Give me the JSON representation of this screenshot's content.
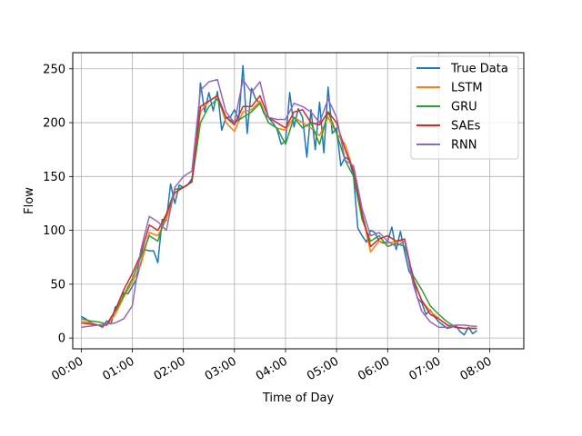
{
  "chart_data": {
    "type": "line",
    "title": "",
    "xlabel": "Time of Day",
    "ylabel": "Flow",
    "x_ticks": [
      "00:00",
      "01:00",
      "02:00",
      "03:00",
      "04:00",
      "05:00",
      "06:00",
      "07:00",
      "08:00"
    ],
    "y_ticks": [
      0,
      50,
      100,
      150,
      200,
      250
    ],
    "xlim_minutes": [
      -10,
      520
    ],
    "ylim": [
      -10,
      265
    ],
    "grid": true,
    "legend_position": "top-right",
    "series": [
      {
        "name": "True Data",
        "color": "#1f77b4",
        "points": [
          [
            0,
            20
          ],
          [
            5,
            18
          ],
          [
            10,
            15
          ],
          [
            15,
            13
          ],
          [
            20,
            12
          ],
          [
            25,
            10
          ],
          [
            30,
            16
          ],
          [
            35,
            13
          ],
          [
            40,
            29
          ],
          [
            45,
            30
          ],
          [
            50,
            42
          ],
          [
            55,
            41
          ],
          [
            60,
            48
          ],
          [
            65,
            55
          ],
          [
            70,
            70
          ],
          [
            75,
            82
          ],
          [
            80,
            81
          ],
          [
            85,
            81
          ],
          [
            90,
            70
          ],
          [
            95,
            110
          ],
          [
            100,
            109
          ],
          [
            105,
            143
          ],
          [
            110,
            125
          ],
          [
            115,
            142
          ],
          [
            120,
            140
          ],
          [
            125,
            142
          ],
          [
            130,
            148
          ],
          [
            135,
            175
          ],
          [
            140,
            237
          ],
          [
            145,
            210
          ],
          [
            150,
            228
          ],
          [
            155,
            211
          ],
          [
            160,
            229
          ],
          [
            165,
            193
          ],
          [
            170,
            205
          ],
          [
            175,
            205
          ],
          [
            180,
            212
          ],
          [
            185,
            203
          ],
          [
            190,
            253
          ],
          [
            195,
            190
          ],
          [
            200,
            232
          ],
          [
            205,
            222
          ],
          [
            210,
            218
          ],
          [
            215,
            208
          ],
          [
            220,
            205
          ],
          [
            225,
            200
          ],
          [
            230,
            194
          ],
          [
            235,
            180
          ],
          [
            240,
            183
          ],
          [
            245,
            228
          ],
          [
            250,
            196
          ],
          [
            255,
            213
          ],
          [
            260,
            205
          ],
          [
            265,
            168
          ],
          [
            270,
            212
          ],
          [
            275,
            175
          ],
          [
            280,
            219
          ],
          [
            285,
            172
          ],
          [
            290,
            233
          ],
          [
            295,
            190
          ],
          [
            300,
            195
          ],
          [
            305,
            160
          ],
          [
            310,
            168
          ],
          [
            315,
            165
          ],
          [
            320,
            150
          ],
          [
            325,
            102
          ],
          [
            330,
            95
          ],
          [
            335,
            89
          ],
          [
            340,
            100
          ],
          [
            345,
            98
          ],
          [
            350,
            90
          ],
          [
            355,
            88
          ],
          [
            360,
            90
          ],
          [
            365,
            103
          ],
          [
            370,
            82
          ],
          [
            375,
            99
          ],
          [
            380,
            80
          ],
          [
            385,
            62
          ],
          [
            390,
            56
          ],
          [
            395,
            37
          ],
          [
            400,
            33
          ],
          [
            405,
            22
          ],
          [
            410,
            26
          ],
          [
            415,
            20
          ],
          [
            420,
            15
          ],
          [
            425,
            12
          ],
          [
            430,
            9
          ],
          [
            435,
            10
          ],
          [
            440,
            12
          ],
          [
            445,
            6
          ],
          [
            450,
            3
          ],
          [
            455,
            10
          ],
          [
            460,
            4
          ],
          [
            465,
            7
          ]
        ]
      },
      {
        "name": "LSTM",
        "color": "#ff7f0e",
        "points": [
          [
            0,
            16
          ],
          [
            10,
            14
          ],
          [
            20,
            12
          ],
          [
            30,
            12
          ],
          [
            40,
            22
          ],
          [
            50,
            38
          ],
          [
            60,
            52
          ],
          [
            70,
            68
          ],
          [
            80,
            98
          ],
          [
            90,
            95
          ],
          [
            100,
            110
          ],
          [
            110,
            135
          ],
          [
            120,
            140
          ],
          [
            130,
            145
          ],
          [
            140,
            210
          ],
          [
            150,
            220
          ],
          [
            160,
            225
          ],
          [
            170,
            200
          ],
          [
            180,
            192
          ],
          [
            190,
            210
          ],
          [
            200,
            212
          ],
          [
            210,
            220
          ],
          [
            220,
            200
          ],
          [
            230,
            195
          ],
          [
            240,
            193
          ],
          [
            250,
            205
          ],
          [
            260,
            200
          ],
          [
            270,
            195
          ],
          [
            280,
            188
          ],
          [
            290,
            205
          ],
          [
            300,
            190
          ],
          [
            310,
            180
          ],
          [
            320,
            155
          ],
          [
            330,
            115
          ],
          [
            340,
            80
          ],
          [
            350,
            90
          ],
          [
            360,
            88
          ],
          [
            370,
            90
          ],
          [
            380,
            90
          ],
          [
            390,
            55
          ],
          [
            400,
            35
          ],
          [
            410,
            25
          ],
          [
            420,
            18
          ],
          [
            430,
            12
          ],
          [
            440,
            10
          ],
          [
            450,
            9
          ],
          [
            460,
            9
          ],
          [
            465,
            9
          ]
        ]
      },
      {
        "name": "GRU",
        "color": "#2ca02c",
        "points": [
          [
            0,
            18
          ],
          [
            10,
            16
          ],
          [
            20,
            15
          ],
          [
            30,
            13
          ],
          [
            40,
            25
          ],
          [
            50,
            40
          ],
          [
            60,
            55
          ],
          [
            70,
            75
          ],
          [
            80,
            95
          ],
          [
            90,
            90
          ],
          [
            100,
            115
          ],
          [
            110,
            138
          ],
          [
            120,
            140
          ],
          [
            130,
            145
          ],
          [
            140,
            200
          ],
          [
            150,
            215
          ],
          [
            160,
            222
          ],
          [
            170,
            205
          ],
          [
            180,
            200
          ],
          [
            190,
            205
          ],
          [
            200,
            210
          ],
          [
            210,
            218
          ],
          [
            220,
            200
          ],
          [
            230,
            195
          ],
          [
            240,
            180
          ],
          [
            250,
            205
          ],
          [
            260,
            195
          ],
          [
            270,
            200
          ],
          [
            280,
            180
          ],
          [
            290,
            210
          ],
          [
            300,
            190
          ],
          [
            310,
            165
          ],
          [
            320,
            150
          ],
          [
            330,
            110
          ],
          [
            340,
            90
          ],
          [
            350,
            95
          ],
          [
            360,
            85
          ],
          [
            370,
            88
          ],
          [
            380,
            85
          ],
          [
            390,
            58
          ],
          [
            400,
            45
          ],
          [
            410,
            30
          ],
          [
            420,
            22
          ],
          [
            430,
            15
          ],
          [
            440,
            10
          ],
          [
            450,
            9
          ],
          [
            460,
            9
          ],
          [
            465,
            9
          ]
        ]
      },
      {
        "name": "SAEs",
        "color": "#d62728",
        "points": [
          [
            0,
            14
          ],
          [
            10,
            13
          ],
          [
            20,
            12
          ],
          [
            30,
            12
          ],
          [
            40,
            26
          ],
          [
            50,
            45
          ],
          [
            60,
            60
          ],
          [
            70,
            78
          ],
          [
            80,
            105
          ],
          [
            90,
            100
          ],
          [
            100,
            115
          ],
          [
            110,
            135
          ],
          [
            120,
            140
          ],
          [
            130,
            145
          ],
          [
            140,
            215
          ],
          [
            150,
            220
          ],
          [
            160,
            225
          ],
          [
            170,
            205
          ],
          [
            180,
            198
          ],
          [
            190,
            215
          ],
          [
            200,
            215
          ],
          [
            210,
            225
          ],
          [
            220,
            205
          ],
          [
            230,
            200
          ],
          [
            240,
            195
          ],
          [
            250,
            210
          ],
          [
            260,
            212
          ],
          [
            270,
            200
          ],
          [
            280,
            198
          ],
          [
            290,
            210
          ],
          [
            300,
            200
          ],
          [
            310,
            175
          ],
          [
            320,
            155
          ],
          [
            330,
            115
          ],
          [
            340,
            85
          ],
          [
            350,
            92
          ],
          [
            360,
            95
          ],
          [
            370,
            90
          ],
          [
            380,
            92
          ],
          [
            390,
            55
          ],
          [
            400,
            35
          ],
          [
            410,
            22
          ],
          [
            420,
            18
          ],
          [
            430,
            12
          ],
          [
            440,
            10
          ],
          [
            450,
            9
          ],
          [
            460,
            9
          ],
          [
            465,
            9
          ]
        ]
      },
      {
        "name": "RNN",
        "color": "#9467bd",
        "points": [
          [
            0,
            10
          ],
          [
            10,
            11
          ],
          [
            20,
            12
          ],
          [
            30,
            13
          ],
          [
            40,
            14
          ],
          [
            50,
            18
          ],
          [
            60,
            30
          ],
          [
            70,
            82
          ],
          [
            80,
            113
          ],
          [
            90,
            108
          ],
          [
            100,
            100
          ],
          [
            110,
            140
          ],
          [
            120,
            150
          ],
          [
            130,
            155
          ],
          [
            140,
            230
          ],
          [
            150,
            238
          ],
          [
            160,
            240
          ],
          [
            170,
            210
          ],
          [
            180,
            200
          ],
          [
            190,
            240
          ],
          [
            200,
            228
          ],
          [
            210,
            238
          ],
          [
            220,
            205
          ],
          [
            230,
            203
          ],
          [
            240,
            203
          ],
          [
            250,
            218
          ],
          [
            260,
            215
          ],
          [
            270,
            210
          ],
          [
            280,
            200
          ],
          [
            290,
            222
          ],
          [
            300,
            205
          ],
          [
            310,
            165
          ],
          [
            320,
            160
          ],
          [
            330,
            120
          ],
          [
            340,
            95
          ],
          [
            350,
            98
          ],
          [
            360,
            90
          ],
          [
            370,
            85
          ],
          [
            380,
            90
          ],
          [
            390,
            50
          ],
          [
            400,
            25
          ],
          [
            410,
            15
          ],
          [
            420,
            10
          ],
          [
            430,
            10
          ],
          [
            440,
            12
          ],
          [
            450,
            12
          ],
          [
            460,
            11
          ],
          [
            465,
            11
          ]
        ]
      }
    ]
  }
}
